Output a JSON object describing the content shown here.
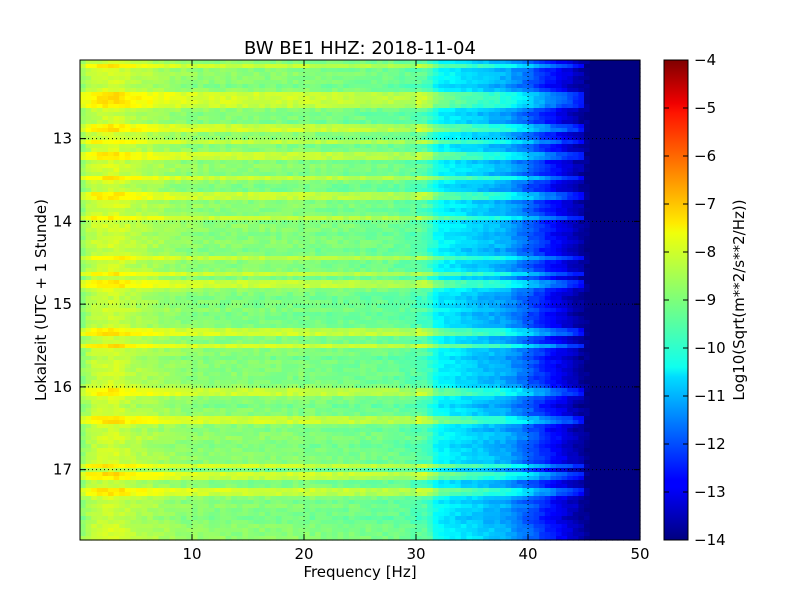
{
  "chart_data": {
    "type": "heatmap",
    "title": "BW BE1 HHZ: 2018-11-04",
    "xlabel": "Frequency [Hz]",
    "ylabel": "Lokalzeit (UTC + 1 Stunde)",
    "xlim": [
      0,
      50
    ],
    "ylim": [
      12.05,
      17.85
    ],
    "y_inverted": true,
    "xticks": [
      10,
      20,
      30,
      40,
      50
    ],
    "yticks": [
      13,
      14,
      15,
      16,
      17
    ],
    "grid": true,
    "colormap": "jet",
    "colorbar": {
      "label": "Log10(Sqrt(m**2/s**2/Hz))",
      "range": [
        -14,
        -4
      ],
      "ticks": [
        -4,
        -5,
        -6,
        -7,
        -8,
        -9,
        -10,
        -11,
        -12,
        -13,
        -14
      ]
    },
    "spectrum_profile": {
      "frequency_hz": [
        0,
        1,
        3,
        5,
        10,
        20,
        28,
        31,
        32,
        35,
        38,
        40,
        42,
        44,
        45,
        46,
        50
      ],
      "level": [
        -9.0,
        -8.4,
        -8.2,
        -8.5,
        -8.9,
        -9.0,
        -9.2,
        -9.5,
        -10.3,
        -10.7,
        -11.1,
        -11.8,
        -12.6,
        -13.4,
        -13.8,
        -14.0,
        -14.0
      ]
    },
    "bright_bands_hours": [
      12.12,
      12.48,
      12.58,
      12.88,
      13.05,
      13.22,
      13.48,
      13.68,
      13.95,
      14.45,
      14.63,
      14.75,
      15.35,
      15.5,
      16.05,
      16.4,
      16.95,
      17.08,
      17.28
    ]
  }
}
